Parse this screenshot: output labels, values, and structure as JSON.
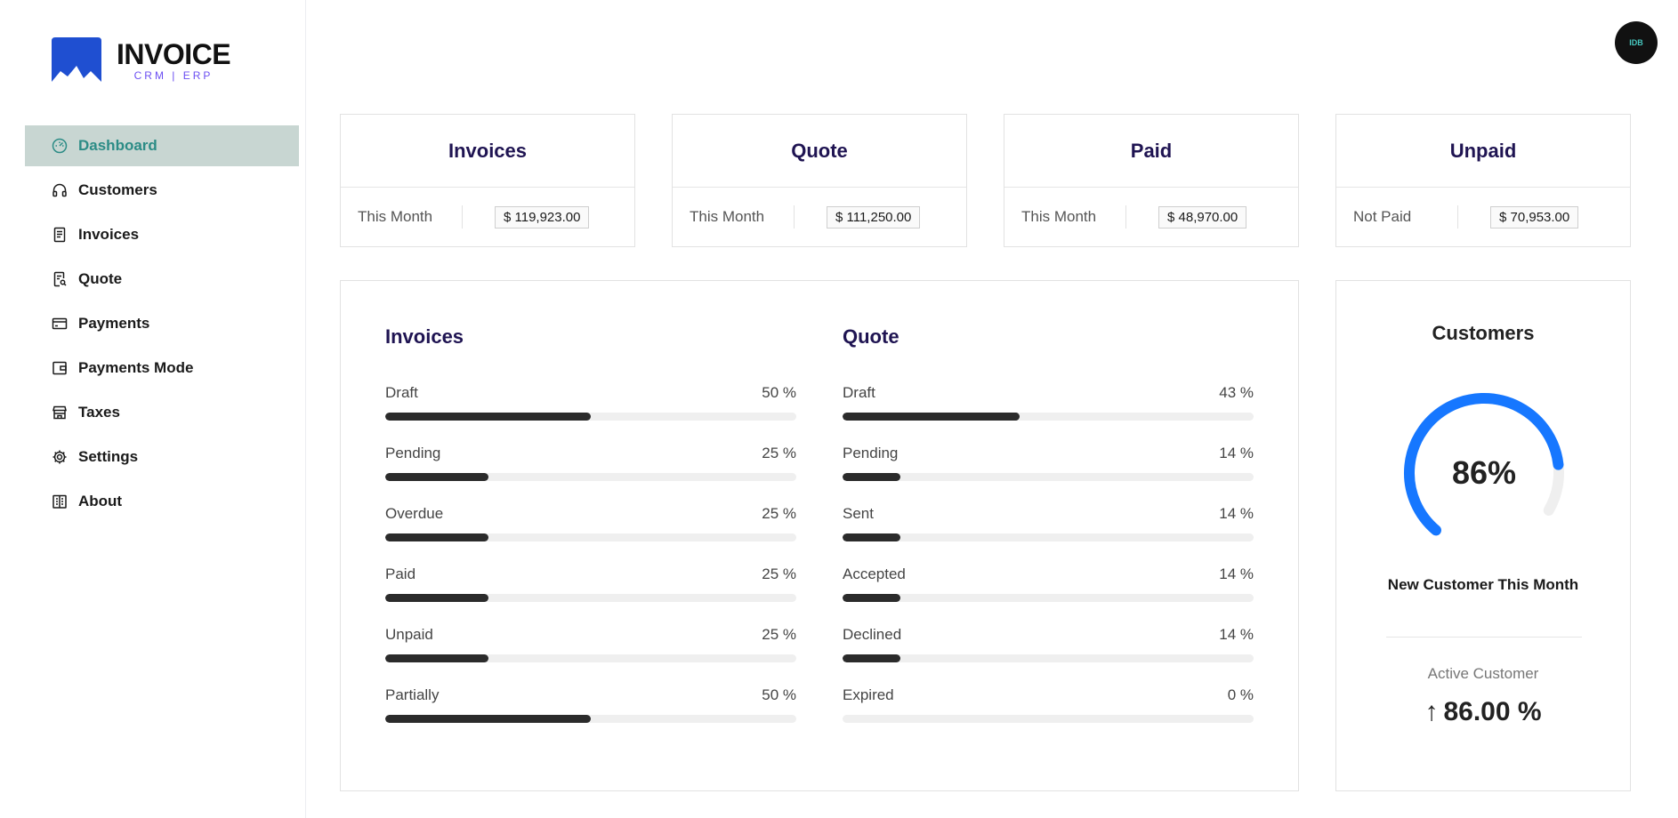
{
  "brand": {
    "title": "INVOICE",
    "subtitle": "CRM | ERP",
    "accent": "#1f4fd1",
    "sub_color": "#6b4ef2"
  },
  "user": {
    "avatar_initials": "IDB"
  },
  "sidebar": {
    "items": [
      {
        "label": "Dashboard",
        "icon": "dashboard-icon",
        "active": true
      },
      {
        "label": "Customers",
        "icon": "headphones-icon"
      },
      {
        "label": "Invoices",
        "icon": "document-icon"
      },
      {
        "label": "Quote",
        "icon": "file-search-icon"
      },
      {
        "label": "Payments",
        "icon": "credit-card-icon"
      },
      {
        "label": "Payments Mode",
        "icon": "wallet-icon"
      },
      {
        "label": "Taxes",
        "icon": "shop-icon"
      },
      {
        "label": "Settings",
        "icon": "gear-icon"
      },
      {
        "label": "About",
        "icon": "building-icon"
      }
    ]
  },
  "stats": [
    {
      "title": "Invoices",
      "label": "This Month",
      "value": "$ 119,923.00"
    },
    {
      "title": "Quote",
      "label": "This Month",
      "value": "$ 111,250.00"
    },
    {
      "title": "Paid",
      "label": "This Month",
      "value": "$ 48,970.00"
    },
    {
      "title": "Unpaid",
      "label": "Not Paid",
      "value": "$ 70,953.00"
    }
  ],
  "invoice_progress": {
    "title": "Invoices",
    "rows": [
      {
        "label": "Draft",
        "percent_text": "50 %",
        "percent": 50
      },
      {
        "label": "Pending",
        "percent_text": "25 %",
        "percent": 25
      },
      {
        "label": "Overdue",
        "percent_text": "25 %",
        "percent": 25
      },
      {
        "label": "Paid",
        "percent_text": "25 %",
        "percent": 25
      },
      {
        "label": "Unpaid",
        "percent_text": "25 %",
        "percent": 25
      },
      {
        "label": "Partially",
        "percent_text": "50 %",
        "percent": 50
      }
    ]
  },
  "quote_progress": {
    "title": "Quote",
    "rows": [
      {
        "label": "Draft",
        "percent_text": "43 %",
        "percent": 43
      },
      {
        "label": "Pending",
        "percent_text": "14 %",
        "percent": 14
      },
      {
        "label": "Sent",
        "percent_text": "14 %",
        "percent": 14
      },
      {
        "label": "Accepted",
        "percent_text": "14 %",
        "percent": 14
      },
      {
        "label": "Declined",
        "percent_text": "14 %",
        "percent": 14
      },
      {
        "label": "Expired",
        "percent_text": "0 %",
        "percent": 0
      }
    ]
  },
  "customers": {
    "title": "Customers",
    "gauge_text": "86%",
    "gauge_percent": 86,
    "gauge_color": "#1677ff",
    "subtitle": "New Customer This Month",
    "active_label": "Active Customer",
    "active_value": "86.00 %",
    "arrow": "↑"
  }
}
